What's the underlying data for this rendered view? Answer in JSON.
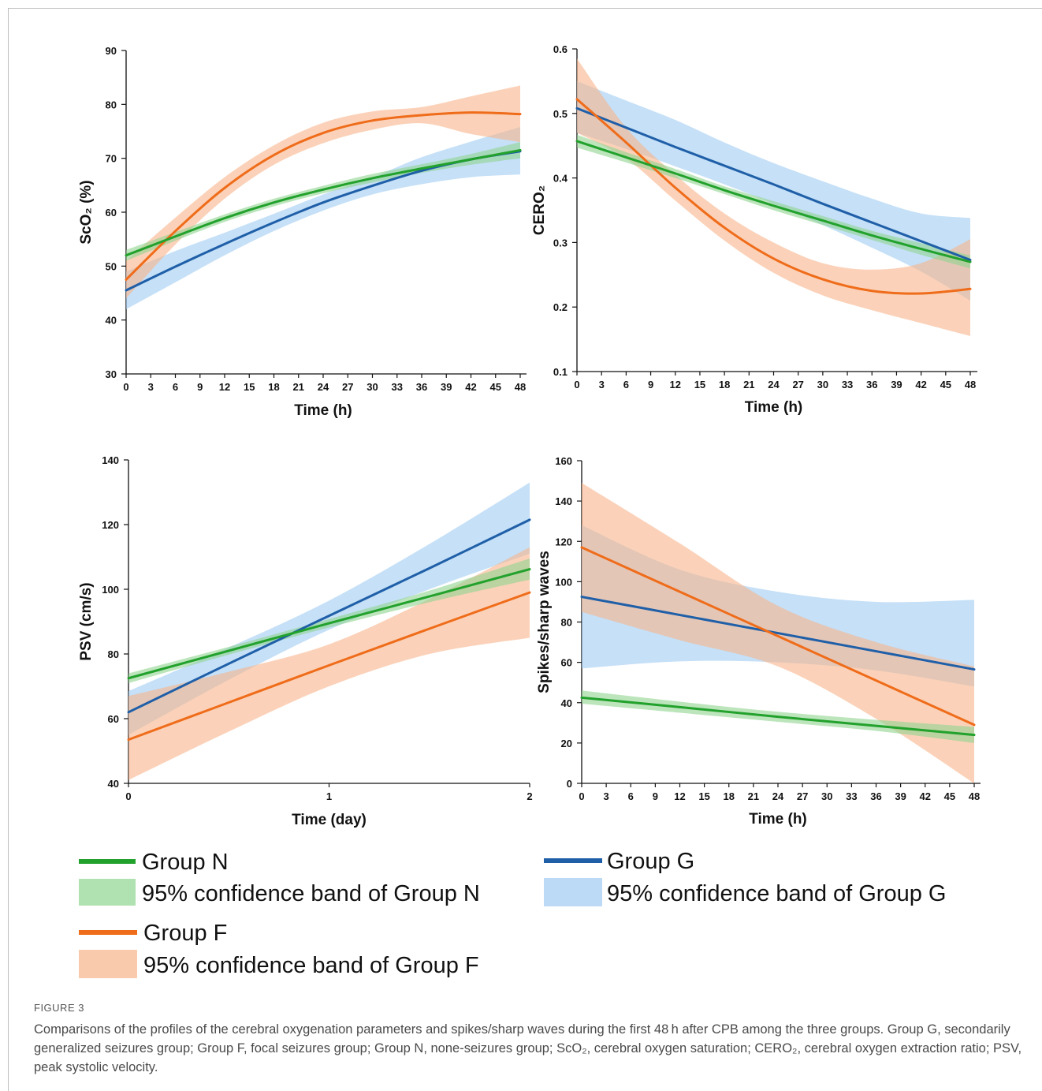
{
  "figure": {
    "label": "FIGURE 3",
    "caption": "Comparisons of the profiles of the cerebral oxygenation parameters and spikes/sharp waves during the first 48 h after CPB among the three groups. Group G, secondarily generalized seizures group; Group F, focal seizures group; Group N, none-seizures group; ScO₂, cerebral oxygen saturation; CERO₂, cerebral oxygen extraction ratio; PSV, peak systolic velocity."
  },
  "colors": {
    "group_n_line": "#22a12c",
    "group_n_band": "#8fd48f",
    "group_g_line": "#1f5fa8",
    "group_g_band": "#9fcbf2",
    "group_f_line": "#ef6c1a",
    "group_f_band": "#f8b48a"
  },
  "legend": {
    "group_n": "Group N",
    "band_n": "95% confidence band of Group N",
    "group_g": "Group G",
    "band_g": "95% confidence band of Group G",
    "group_f": "Group F",
    "band_f": "95% confidence band of Group F"
  },
  "chart_data": [
    {
      "id": "sco2",
      "type": "line",
      "title": "",
      "xlabel": "Time (h)",
      "ylabel": "ScO₂ (%)",
      "xlim": [
        0,
        48
      ],
      "ylim": [
        30,
        90
      ],
      "xticks": [
        0,
        3,
        6,
        9,
        12,
        15,
        18,
        21,
        24,
        27,
        30,
        33,
        36,
        39,
        42,
        45,
        48
      ],
      "yticks": [
        30,
        40,
        50,
        60,
        70,
        80,
        90
      ],
      "grid": false,
      "x": [
        0,
        6,
        12,
        18,
        24,
        30,
        36,
        42,
        48
      ],
      "series": [
        {
          "name": "Group N",
          "values": [
            52,
            55.5,
            58.9,
            61.8,
            64.2,
            66.3,
            68.1,
            69.8,
            71.5
          ],
          "lower": [
            51,
            54.7,
            58.2,
            61.1,
            63.5,
            65.5,
            67.3,
            68.8,
            70
          ],
          "upper": [
            53,
            56.3,
            59.6,
            62.5,
            64.9,
            67.1,
            68.9,
            70.8,
            73
          ]
        },
        {
          "name": "Group G",
          "values": [
            45.5,
            49.9,
            54.1,
            58.1,
            61.8,
            64.9,
            67.7,
            69.8,
            71.3
          ],
          "lower": [
            42,
            47,
            52,
            56.5,
            60.3,
            63.3,
            65.2,
            66.5,
            67
          ],
          "upper": [
            49,
            52.8,
            56.2,
            59.7,
            63.3,
            66.5,
            70.2,
            73.1,
            75.8
          ]
        },
        {
          "name": "Group F",
          "values": [
            47.5,
            56.5,
            64.5,
            70.6,
            74.7,
            77,
            78,
            78.5,
            78.2
          ],
          "lower": [
            44,
            54,
            62.5,
            68.8,
            72.8,
            75.3,
            76.5,
            74.5,
            73
          ],
          "upper": [
            51,
            59,
            66.5,
            72.4,
            76.6,
            78.7,
            79.5,
            81.5,
            83.5
          ]
        }
      ]
    },
    {
      "id": "cero2",
      "type": "line",
      "title": "",
      "xlabel": "Time (h)",
      "ylabel": "CERO₂",
      "xlim": [
        0,
        48
      ],
      "ylim": [
        0.1,
        0.6
      ],
      "xticks": [
        0,
        3,
        6,
        9,
        12,
        15,
        18,
        21,
        24,
        27,
        30,
        33,
        36,
        39,
        42,
        45,
        48
      ],
      "yticks": [
        0.1,
        0.2,
        0.3,
        0.4,
        0.5,
        0.6
      ],
      "grid": false,
      "x": [
        0,
        6,
        12,
        18,
        24,
        30,
        36,
        42,
        48
      ],
      "series": [
        {
          "name": "Group N",
          "values": [
            0.457,
            0.432,
            0.407,
            0.381,
            0.357,
            0.334,
            0.311,
            0.29,
            0.27
          ],
          "lower": [
            0.447,
            0.424,
            0.4,
            0.375,
            0.35,
            0.327,
            0.304,
            0.281,
            0.26
          ],
          "upper": [
            0.467,
            0.44,
            0.414,
            0.387,
            0.364,
            0.341,
            0.318,
            0.299,
            0.28
          ]
        },
        {
          "name": "Group G",
          "values": [
            0.508,
            0.478,
            0.448,
            0.419,
            0.39,
            0.36,
            0.331,
            0.302,
            0.273
          ],
          "lower": [
            0.47,
            0.445,
            0.418,
            0.39,
            0.36,
            0.327,
            0.292,
            0.255,
            0.21
          ],
          "upper": [
            0.55,
            0.52,
            0.49,
            0.455,
            0.423,
            0.395,
            0.368,
            0.345,
            0.338
          ]
        },
        {
          "name": "Group F",
          "values": [
            0.522,
            0.455,
            0.385,
            0.323,
            0.275,
            0.243,
            0.225,
            0.221,
            0.228
          ],
          "lower": [
            0.47,
            0.43,
            0.365,
            0.303,
            0.253,
            0.218,
            0.195,
            0.175,
            0.155
          ],
          "upper": [
            0.585,
            0.478,
            0.405,
            0.345,
            0.3,
            0.268,
            0.258,
            0.268,
            0.305
          ]
        }
      ]
    },
    {
      "id": "psv",
      "type": "line",
      "title": "",
      "xlabel": "Time (day)",
      "ylabel": "PSV (cm/s)",
      "xlim": [
        0,
        2.2
      ],
      "ylim": [
        40,
        140
      ],
      "xticks": [
        0,
        1,
        2
      ],
      "yticks": [
        40,
        60,
        80,
        100,
        120,
        140
      ],
      "grid": false,
      "x": [
        0,
        0.5,
        1,
        1.5,
        2
      ],
      "series": [
        {
          "name": "Group N",
          "values": [
            72.5,
            81,
            89.5,
            97.8,
            106.2
          ],
          "lower": [
            71,
            79.8,
            88.2,
            96,
            103
          ],
          "upper": [
            74,
            82.2,
            90.8,
            99.6,
            109.5
          ]
        },
        {
          "name": "Group G",
          "values": [
            62,
            77,
            91.8,
            106.5,
            121.5
          ],
          "lower": [
            55,
            72,
            87.5,
            100,
            111
          ],
          "upper": [
            68.5,
            82,
            96.5,
            114,
            133
          ]
        },
        {
          "name": "Group F",
          "values": [
            53.5,
            65,
            76.5,
            87.8,
            99
          ],
          "lower": [
            41,
            56,
            70,
            80,
            85
          ],
          "upper": [
            67,
            74.5,
            83,
            97,
            113
          ]
        }
      ]
    },
    {
      "id": "spikes",
      "type": "line",
      "title": "",
      "xlabel": "Time (h)",
      "ylabel": "Spikes/sharp waves",
      "xlim": [
        0,
        48
      ],
      "ylim": [
        0,
        160
      ],
      "xticks": [
        0,
        3,
        6,
        9,
        12,
        15,
        18,
        21,
        24,
        27,
        30,
        33,
        36,
        39,
        42,
        45,
        48
      ],
      "yticks": [
        0,
        20,
        40,
        60,
        80,
        100,
        120,
        140,
        160
      ],
      "grid": false,
      "x": [
        0,
        12,
        24,
        36,
        48
      ],
      "series": [
        {
          "name": "Group N",
          "values": [
            42.5,
            37.8,
            33,
            28.5,
            24
          ],
          "lower": [
            39.5,
            35,
            30.5,
            26,
            20
          ],
          "upper": [
            46,
            40.5,
            35.5,
            31.5,
            28
          ]
        },
        {
          "name": "Group G",
          "values": [
            92.5,
            83.5,
            74.5,
            65.5,
            56.5
          ],
          "lower": [
            57,
            60.5,
            60,
            56,
            48
          ],
          "upper": [
            128,
            106,
            95,
            90,
            91
          ]
        },
        {
          "name": "Group F",
          "values": [
            117,
            95,
            73,
            51,
            29
          ],
          "lower": [
            85,
            71,
            58,
            32,
            0
          ],
          "upper": [
            149,
            119,
            88,
            70,
            58
          ]
        }
      ]
    }
  ]
}
